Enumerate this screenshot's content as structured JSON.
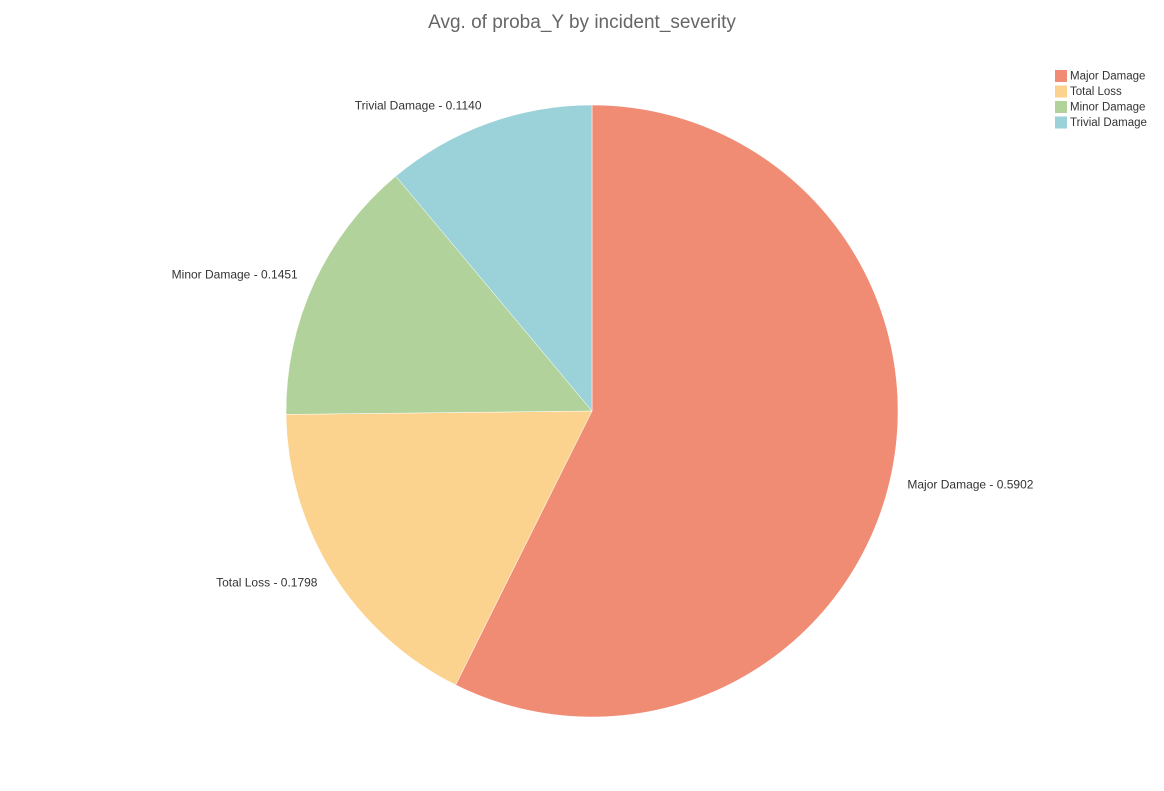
{
  "chart_data": {
    "type": "pie",
    "title": "Avg. of proba_Y by incident_severity",
    "categories": [
      "Major Damage",
      "Total Loss",
      "Minor Damage",
      "Trivial Damage"
    ],
    "values": [
      0.5902,
      0.1798,
      0.1451,
      0.114
    ],
    "value_labels": [
      "Major Damage - 0.5902",
      "Total Loss - 0.1798",
      "Minor Damage - 0.1451",
      "Trivial Damage - 0.1140"
    ],
    "colors": [
      "#f08c74",
      "#fcd38e",
      "#b1d39b",
      "#9bd2da"
    ],
    "legend": "top-right"
  }
}
